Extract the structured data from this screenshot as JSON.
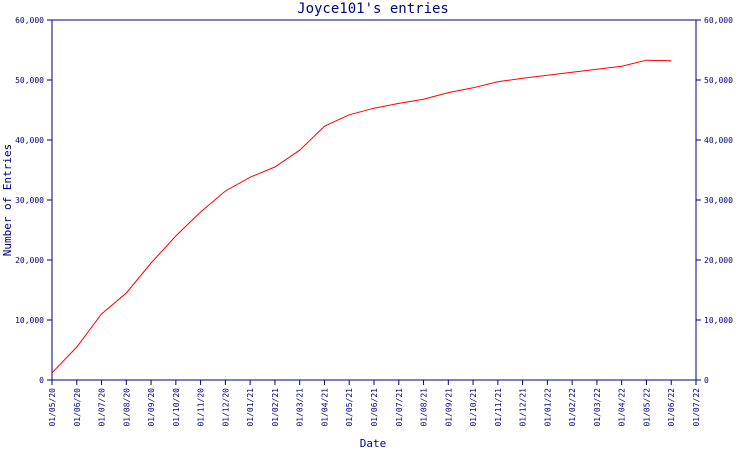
{
  "chart_data": {
    "type": "line",
    "title": "Joyce101's entries",
    "xlabel": "Date",
    "ylabel": "Number of Entries",
    "ylim": [
      0,
      60000
    ],
    "y_ticks": [
      "0",
      "10,000",
      "20,000",
      "30,000",
      "40,000",
      "50,000",
      "60,000"
    ],
    "y_tick_values": [
      0,
      10000,
      20000,
      30000,
      40000,
      50000,
      60000
    ],
    "x_ticks": [
      "01/05/20",
      "01/06/20",
      "01/07/20",
      "01/08/20",
      "01/09/20",
      "01/10/20",
      "01/11/20",
      "01/12/20",
      "01/01/21",
      "01/02/21",
      "01/03/21",
      "01/04/21",
      "01/05/21",
      "01/06/21",
      "01/07/21",
      "01/08/21",
      "01/09/21",
      "01/10/21",
      "01/11/21",
      "01/12/21",
      "01/01/22",
      "01/02/22",
      "01/03/22",
      "01/04/22",
      "01/05/22",
      "01/06/22",
      "01/07/22"
    ],
    "grid": false,
    "colors": {
      "line": "#ff0000",
      "axis": "#000080"
    },
    "series": [
      {
        "x": [
          "2020-05-01",
          "2020-06-01",
          "2020-07-01",
          "2020-08-01",
          "2020-09-01",
          "2020-10-01",
          "2020-11-01",
          "2020-12-01",
          "2021-01-01",
          "2021-02-01",
          "2021-03-01",
          "2021-04-01",
          "2021-05-01",
          "2021-06-01",
          "2021-07-01",
          "2021-08-01",
          "2021-09-01",
          "2021-10-01",
          "2021-11-01",
          "2021-12-01",
          "2022-01-01",
          "2022-02-01",
          "2022-03-01",
          "2022-04-01",
          "2022-05-01",
          "2022-06-01"
        ],
        "y": [
          1200,
          5500,
          11000,
          14500,
          19500,
          24000,
          28000,
          31500,
          33800,
          35500,
          38300,
          42300,
          44200,
          45300,
          46100,
          46800,
          47900,
          48700,
          49700,
          50300,
          50800,
          51300,
          51800,
          52300,
          53300,
          53200
        ]
      }
    ]
  }
}
